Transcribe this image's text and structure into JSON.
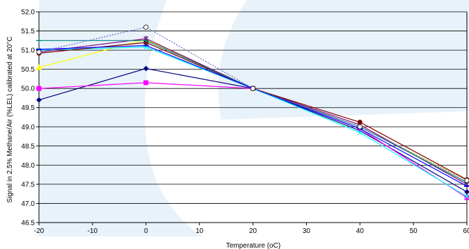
{
  "chart_data": {
    "type": "line",
    "title": "",
    "xlabel": "Temperature (oC)",
    "ylabel": "Signal in 2.5% Methane/Air (%LEL) calibrated at 20°C",
    "xlim": [
      -20,
      60
    ],
    "ylim": [
      46.5,
      52.0
    ],
    "x_ticks": [
      "-20",
      "-10",
      "0",
      "10",
      "20",
      "30",
      "40",
      "50",
      "60"
    ],
    "y_ticks": [
      "46.5",
      "47.0",
      "47.5",
      "48.0",
      "48.5",
      "49.0",
      "49.5",
      "50.0",
      "50.5",
      "51.0",
      "51.5",
      "52.0"
    ],
    "grid": "horizontal",
    "legend": "none",
    "x": [
      -20,
      0,
      20,
      40,
      60
    ],
    "series": [
      {
        "color": "#000080",
        "marker": "diamond",
        "values": [
          49.7,
          50.52,
          50.0,
          48.9,
          47.3
        ]
      },
      {
        "color": "#ff00ff",
        "marker": "square",
        "values": [
          50.0,
          50.15,
          50.0,
          48.95,
          47.15
        ]
      },
      {
        "color": "#ffff00",
        "marker": "triangle",
        "values": [
          50.55,
          51.28,
          50.0,
          49.0,
          47.6
        ]
      },
      {
        "color": "#00ffff",
        "marker": "x",
        "values": [
          51.0,
          51.08,
          50.0,
          48.85,
          47.18
        ]
      },
      {
        "color": "#800080",
        "marker": "star",
        "values": [
          50.95,
          51.3,
          50.0,
          49.05,
          47.5
        ]
      },
      {
        "color": "#800000",
        "marker": "circle",
        "values": [
          50.92,
          51.2,
          50.0,
          49.12,
          47.62
        ]
      },
      {
        "color": "#008080",
        "marker": "plus",
        "values": [
          51.25,
          51.25,
          50.0,
          49.0,
          47.55
        ]
      },
      {
        "color": "#0000ff",
        "marker": "dash",
        "values": [
          51.02,
          51.12,
          50.0,
          48.95,
          47.45
        ]
      },
      {
        "color": "#6666cc",
        "marker": "circle-open",
        "dashed": true,
        "values": [
          50.95,
          51.6,
          50.0,
          49.0,
          47.6
        ]
      }
    ]
  }
}
